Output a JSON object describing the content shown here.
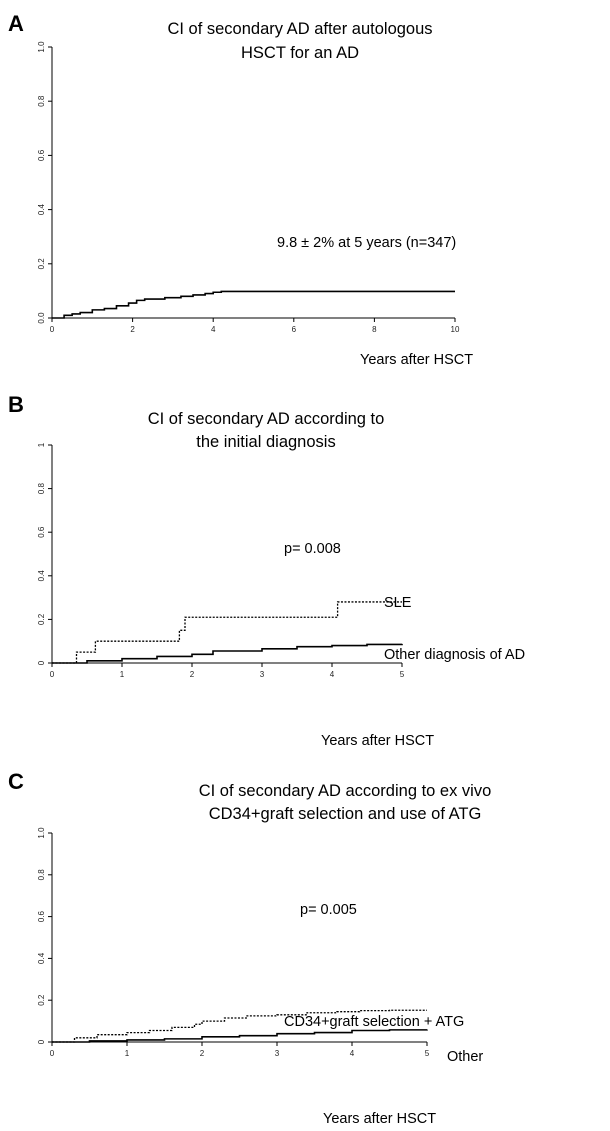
{
  "chart_data": [
    {
      "type": "line",
      "panel": "A",
      "title": [
        "CI of secondary AD after autologous",
        "HSCT for an AD"
      ],
      "xlabel": "Years after HSCT",
      "ylabel": "",
      "xlim": [
        0,
        10
      ],
      "ylim": [
        0,
        1
      ],
      "x_ticks": [
        0,
        2,
        4,
        6,
        8,
        10
      ],
      "x_tick_labels": [
        "0",
        "2",
        "4",
        "6",
        "8",
        "10"
      ],
      "y_ticks": [
        0,
        0.2,
        0.4,
        0.6,
        0.8,
        1
      ],
      "y_tick_labels": [
        "0.0",
        "0.2",
        "0.4",
        "0.6",
        "0.8",
        "1.0"
      ],
      "annotations": [
        "9.8 ± 2% at 5 years (n=347)"
      ],
      "series": [
        {
          "style": "solid",
          "x": [
            0,
            0.3,
            0.5,
            0.7,
            1.0,
            1.3,
            1.6,
            1.9,
            2.1,
            2.3,
            2.8,
            3.2,
            3.5,
            3.8,
            4.0,
            4.2,
            10.0
          ],
          "y": [
            0,
            0.01,
            0.015,
            0.02,
            0.03,
            0.035,
            0.045,
            0.055,
            0.065,
            0.07,
            0.075,
            0.08,
            0.085,
            0.09,
            0.095,
            0.098,
            0.098
          ]
        }
      ]
    },
    {
      "type": "line",
      "panel": "B",
      "title": [
        "CI of secondary AD according to",
        "the initial diagnosis"
      ],
      "xlabel": "Years after HSCT",
      "ylabel": "",
      "xlim": [
        0,
        5
      ],
      "ylim": [
        0,
        1
      ],
      "x_ticks": [
        0,
        1,
        2,
        3,
        4,
        5
      ],
      "x_tick_labels": [
        "0",
        "1",
        "2",
        "3",
        "4",
        "5"
      ],
      "y_ticks": [
        0,
        0.2,
        0.4,
        0.6,
        0.8,
        1
      ],
      "y_tick_labels": [
        "0",
        "0.2",
        "0.4",
        "0.6",
        "0.8",
        "1"
      ],
      "annotations": [
        "p= 0.008"
      ],
      "series": [
        {
          "name": "SLE",
          "style": "dotted",
          "x": [
            0,
            0.35,
            0.35,
            0.62,
            0.62,
            1.82,
            1.82,
            1.9,
            1.9,
            4.08,
            4.08,
            5.0
          ],
          "y": [
            0,
            0,
            0.05,
            0.05,
            0.1,
            0.1,
            0.15,
            0.15,
            0.21,
            0.21,
            0.28,
            0.28
          ]
        },
        {
          "name": "Other diagnosis of AD",
          "style": "solid",
          "x": [
            0,
            0.5,
            1.0,
            1.5,
            2.0,
            2.3,
            3.0,
            3.5,
            4.0,
            4.5,
            5.0
          ],
          "y": [
            0,
            0.01,
            0.02,
            0.03,
            0.04,
            0.055,
            0.065,
            0.075,
            0.08,
            0.085,
            0.088
          ]
        }
      ]
    },
    {
      "type": "line",
      "panel": "C",
      "title": [
        "CI of secondary AD according to ex vivo",
        "CD34+graft selection and use of ATG"
      ],
      "xlabel": "Years after HSCT",
      "ylabel": "",
      "xlim": [
        0,
        5
      ],
      "ylim": [
        0,
        1
      ],
      "x_ticks": [
        0,
        1,
        2,
        3,
        4,
        5
      ],
      "x_tick_labels": [
        "0",
        "1",
        "2",
        "3",
        "4",
        "5"
      ],
      "y_ticks": [
        0,
        0.2,
        0.4,
        0.6,
        0.8,
        1
      ],
      "y_tick_labels": [
        "0",
        "0.2",
        "0.4",
        "0.6",
        "0.8",
        "1.0"
      ],
      "annotations": [
        "p= 0.005"
      ],
      "series": [
        {
          "name": "CD34+graft selection + ATG",
          "style": "dotted",
          "x": [
            0,
            0.3,
            0.6,
            1.0,
            1.3,
            1.6,
            1.9,
            2.0,
            2.3,
            2.6,
            3.0,
            3.4,
            3.8,
            4.1,
            4.5,
            5.0
          ],
          "y": [
            0,
            0.02,
            0.035,
            0.045,
            0.055,
            0.07,
            0.085,
            0.1,
            0.115,
            0.125,
            0.13,
            0.14,
            0.145,
            0.15,
            0.152,
            0.152
          ]
        },
        {
          "name": "Other",
          "style": "solid",
          "x": [
            0,
            0.5,
            1.0,
            1.5,
            2.0,
            2.5,
            3.0,
            3.5,
            4.0,
            4.5,
            5.0
          ],
          "y": [
            0,
            0.005,
            0.01,
            0.015,
            0.025,
            0.03,
            0.04,
            0.045,
            0.055,
            0.058,
            0.06
          ]
        }
      ]
    }
  ],
  "panels": {
    "a": {
      "letter": "A",
      "title_line1": "CI of secondary AD after autologous",
      "title_line2": "HSCT for an AD",
      "annotation": "9.8 ± 2% at 5 years (n=347)",
      "xlabel": "Years after HSCT"
    },
    "b": {
      "letter": "B",
      "title_line1": "CI of secondary AD according to",
      "title_line2": "the initial diagnosis",
      "pvalue": "p= 0.008",
      "label_sle": "SLE",
      "label_other": "Other diagnosis of AD",
      "xlabel": "Years after HSCT"
    },
    "c": {
      "letter": "C",
      "title_line1": "CI of secondary AD according to ex vivo",
      "title_line2": "CD34+graft selection and use of ATG",
      "pvalue": "p= 0.005",
      "label_cd34": "CD34+graft selection + ATG",
      "label_other": "Other",
      "xlabel": "Years after HSCT"
    }
  }
}
